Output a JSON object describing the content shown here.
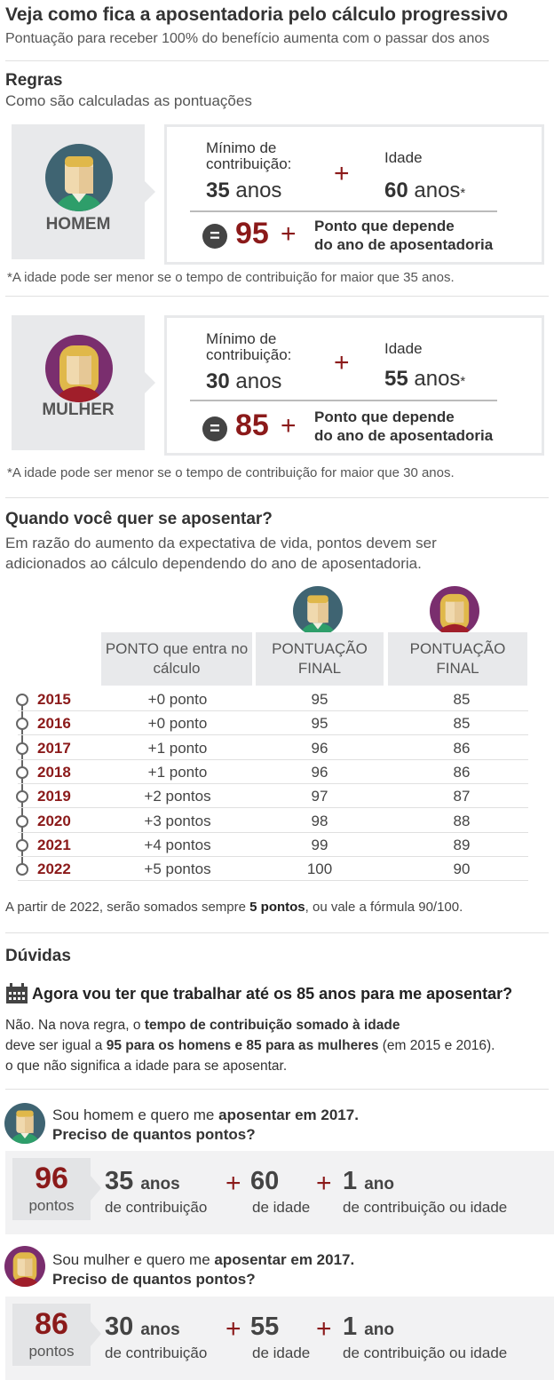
{
  "header": {
    "title": "Veja como fica a aposentadoria pelo cálculo progressivo",
    "subtitle": "Pontuação para receber 100% do benefício aumenta com o passar dos anos"
  },
  "rules": {
    "heading": "Regras",
    "subheading": "Como são calculadas as pontuações",
    "man": {
      "label": "HOMEM",
      "min_label": "Mínimo de contribuição:",
      "min_value": "35",
      "min_unit": "anos",
      "plus": "+",
      "age_label": "Idade",
      "age_value": "60",
      "age_unit": "anos",
      "asterisk": "*",
      "equals": "=",
      "score": "95",
      "point_line1": "Ponto que depende",
      "point_line2": "do ano de aposentadoria",
      "note": "*A idade pode ser menor se o tempo de contribuição for maior que 35 anos."
    },
    "woman": {
      "label": "MULHER",
      "min_label": "Mínimo de contribuição:",
      "min_value": "30",
      "min_unit": "anos",
      "plus": "+",
      "age_label": "Idade",
      "age_value": "55",
      "age_unit": "anos",
      "asterisk": "*",
      "equals": "=",
      "score": "85",
      "point_line1": "Ponto que depende",
      "point_line2": "do ano de aposentadoria",
      "note": "*A idade pode ser menor se o tempo de contribuição for maior que 30 anos."
    }
  },
  "when": {
    "heading": "Quando você quer se aposentar?",
    "text_line1": "Em razão do aumento da expectativa de vida, pontos devem ser",
    "text_line2": "adicionados ao cálculo dependendo do ano de aposentadoria.",
    "headers": [
      "PONTO que entra no cálculo",
      "PONTUAÇÃO FINAL",
      "PONTUAÇÃO FINAL"
    ],
    "rows": [
      {
        "year": "2015",
        "ponto": "+0 ponto",
        "man": "95",
        "woman": "85"
      },
      {
        "year": "2016",
        "ponto": "+0 ponto",
        "man": "95",
        "woman": "85"
      },
      {
        "year": "2017",
        "ponto": "+1 ponto",
        "man": "96",
        "woman": "86"
      },
      {
        "year": "2018",
        "ponto": "+1 ponto",
        "man": "96",
        "woman": "86"
      },
      {
        "year": "2019",
        "ponto": "+2 pontos",
        "man": "97",
        "woman": "87"
      },
      {
        "year": "2020",
        "ponto": "+3 pontos",
        "man": "98",
        "woman": "88"
      },
      {
        "year": "2021",
        "ponto": "+4 pontos",
        "man": "99",
        "woman": "89"
      },
      {
        "year": "2022",
        "ponto": "+5 pontos",
        "man": "100",
        "woman": "90"
      }
    ],
    "footnote_a": "A partir de 2022, serão somados sempre ",
    "footnote_b": "5 pontos",
    "footnote_c": ", ou vale a fórmula 90/100."
  },
  "faq": {
    "heading": "Dúvidas",
    "icon": "calendar-icon",
    "question": "Agora vou ter que trabalhar até os 85 anos para me aposentar?",
    "answer_1a": "Não. Na nova regra, o ",
    "answer_1b": "tempo de contribuição somado à idade",
    "answer_2a": "deve ser igual a ",
    "answer_2b": "95 para os homens e 85 para as mulheres",
    "answer_2c": " (em 2015 e 2016).",
    "answer_3": "o que não significa a idade para se aposentar.",
    "man_case": {
      "q1a": "Sou homem e quero me ",
      "q1b": "aposentar em 2017.",
      "q2": "Preciso de quantos pontos?",
      "score": "96",
      "score_unit": "pontos",
      "a_value": "35",
      "a_unit": "anos",
      "a_label": "de contribuição",
      "b_value": "60",
      "b_label": "de idade",
      "c_value": "1",
      "c_unit": "ano",
      "c_label": "de contribuição ou idade",
      "plus": "+"
    },
    "woman_case": {
      "q1a": "Sou mulher e quero me ",
      "q1b": "aposentar em 2017.",
      "q2": "Preciso de quantos pontos?",
      "score": "86",
      "score_unit": "pontos",
      "a_value": "30",
      "a_unit": "anos",
      "a_label": "de contribuição",
      "b_value": "55",
      "b_label": "de idade",
      "c_value": "1",
      "c_unit": "ano",
      "c_label": "de contribuição ou idade",
      "plus": "+"
    }
  },
  "colors": {
    "accent": "#8b1a1a",
    "man_avatar_bg": "#3f6472",
    "woman_avatar_bg": "#7a2e6e",
    "panel": "#e8e9eb"
  }
}
